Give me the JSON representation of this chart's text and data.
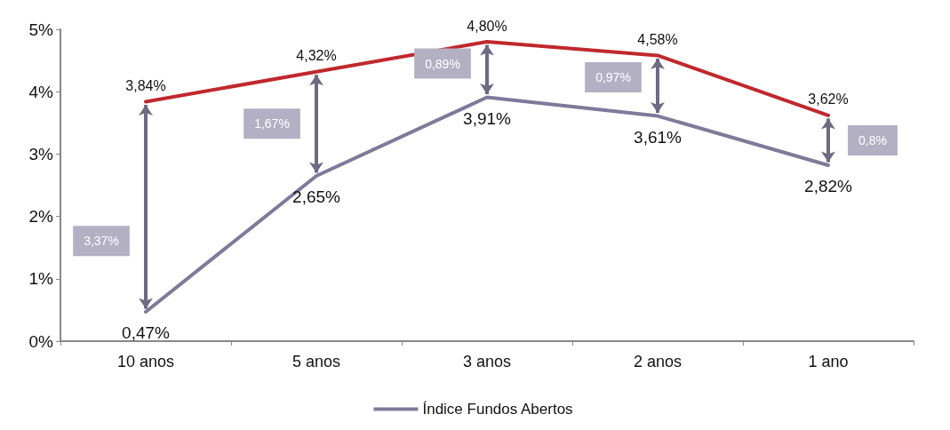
{
  "chart_data": {
    "type": "line",
    "categories": [
      "10 anos",
      "5 anos",
      "3 anos",
      "2 anos",
      "1 ano"
    ],
    "series": [
      {
        "color": "#c0282d",
        "values": [
          3.84,
          4.32,
          4.8,
          4.58,
          3.62
        ],
        "value_labels": [
          "3,84%",
          "4,32%",
          "4,80%",
          "4,58%",
          "3,62%"
        ]
      },
      {
        "name": "Índice Fundos Abertos",
        "color": "#7f7a99",
        "values": [
          0.47,
          2.65,
          3.91,
          3.61,
          2.82
        ],
        "value_labels": [
          "0,47%",
          "2,65%",
          "3,91%",
          "3,61%",
          "2,82%"
        ]
      }
    ],
    "ylim": [
      0,
      5
    ],
    "yticks": [
      {
        "value": 0,
        "label": "0%"
      },
      {
        "value": 1,
        "label": "1%"
      },
      {
        "value": 2,
        "label": "2%"
      },
      {
        "value": 3,
        "label": "3%"
      },
      {
        "value": 4,
        "label": "4%"
      },
      {
        "value": 5,
        "label": "5%"
      }
    ],
    "annotations": [
      "3,37%",
      "1,67%",
      "0,89%",
      "0,97%",
      "0,8%"
    ],
    "grid": false,
    "legend": "bottom",
    "marker": "none",
    "line_style": "solid"
  }
}
